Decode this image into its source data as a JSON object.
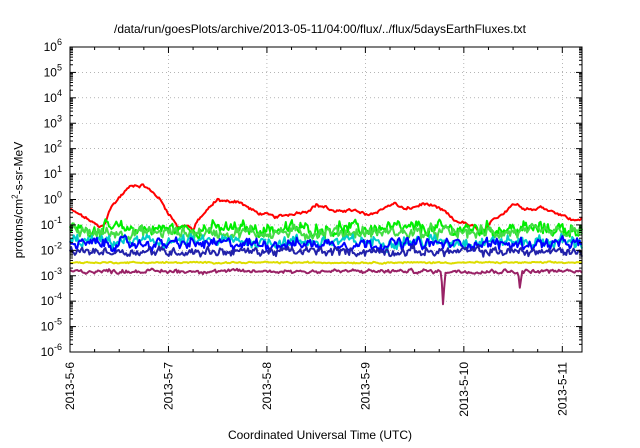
{
  "chart_data": {
    "type": "line",
    "title": "/data/run/goesPlots/archive/2013-05-11/04:00/flux/../flux/5daysEarthFluxes.txt",
    "xlabel": "Coordinated Universal Time (UTC)",
    "ylabel": {
      "prefix": "protons/cm",
      "sup": "2",
      "suffix": "-s-sr-MeV"
    },
    "yscale": "log",
    "ylim_exp": [
      -6,
      6
    ],
    "y_tick_labels": [
      "10^-6",
      "10^-5",
      "10^-4",
      "10^-3",
      "10^-2",
      "10^-1",
      "10^0",
      "10^1",
      "10^2",
      "10^3",
      "10^4",
      "10^5",
      "10^6"
    ],
    "x_tick_labels": [
      "2013-5-6",
      "2013-5-7",
      "2013-5-8",
      "2013-5-9",
      "2013-5-10",
      "2013-5-11"
    ],
    "xlim_days": [
      0,
      5.2
    ],
    "grid": true,
    "grid_style": "dotted",
    "x_note": "x is days since 2013-5-6 00:00 UTC",
    "series": [
      {
        "name": "red channel",
        "color": "#ff0000",
        "points": [
          [
            0.0,
            0.4
          ],
          [
            0.1,
            0.25
          ],
          [
            0.2,
            0.15
          ],
          [
            0.3,
            0.08
          ],
          [
            0.35,
            0.1
          ],
          [
            0.4,
            0.4
          ],
          [
            0.5,
            1.2
          ],
          [
            0.6,
            3.0
          ],
          [
            0.65,
            3.8
          ],
          [
            0.7,
            3.5
          ],
          [
            0.75,
            3.6
          ],
          [
            0.8,
            2.5
          ],
          [
            0.9,
            1.2
          ],
          [
            1.0,
            0.3
          ],
          [
            1.1,
            0.08
          ],
          [
            1.2,
            0.1
          ],
          [
            1.25,
            0.06
          ],
          [
            1.3,
            0.15
          ],
          [
            1.4,
            0.4
          ],
          [
            1.5,
            1.0
          ],
          [
            1.6,
            0.8
          ],
          [
            1.7,
            0.9
          ],
          [
            1.8,
            0.5
          ],
          [
            1.9,
            0.3
          ],
          [
            2.0,
            0.25
          ],
          [
            2.1,
            0.2
          ],
          [
            2.2,
            0.25
          ],
          [
            2.3,
            0.3
          ],
          [
            2.4,
            0.35
          ],
          [
            2.5,
            0.6
          ],
          [
            2.6,
            0.5
          ],
          [
            2.7,
            0.3
          ],
          [
            2.8,
            0.4
          ],
          [
            2.9,
            0.35
          ],
          [
            3.0,
            0.25
          ],
          [
            3.1,
            0.3
          ],
          [
            3.2,
            0.5
          ],
          [
            3.3,
            0.7
          ],
          [
            3.4,
            0.4
          ],
          [
            3.5,
            0.5
          ],
          [
            3.6,
            0.7
          ],
          [
            3.7,
            0.5
          ],
          [
            3.8,
            0.35
          ],
          [
            3.9,
            0.15
          ],
          [
            4.0,
            0.12
          ],
          [
            4.1,
            0.08
          ],
          [
            4.2,
            0.05
          ],
          [
            4.3,
            0.15
          ],
          [
            4.4,
            0.3
          ],
          [
            4.5,
            0.7
          ],
          [
            4.6,
            0.5
          ],
          [
            4.7,
            0.4
          ],
          [
            4.8,
            0.5
          ],
          [
            4.9,
            0.35
          ],
          [
            5.0,
            0.25
          ],
          [
            5.1,
            0.15
          ],
          [
            5.2,
            0.18
          ]
        ],
        "noise": 0.08
      },
      {
        "name": "green channel",
        "color": "#00ee00",
        "base": 0.07,
        "noise": 0.35
      },
      {
        "name": "light green channel",
        "color": "#44dd44",
        "base": 0.05,
        "noise": 0.3
      },
      {
        "name": "cyan channel",
        "color": "#00cccc",
        "base": 0.022,
        "noise": 0.3
      },
      {
        "name": "blue channel",
        "color": "#0000ff",
        "base": 0.018,
        "noise": 0.28
      },
      {
        "name": "dark blue channel",
        "color": "#2222aa",
        "base": 0.009,
        "noise": 0.22
      },
      {
        "name": "yellow channel",
        "color": "#dddd00",
        "base": 0.0033,
        "noise": 0.04
      },
      {
        "name": "purple channel",
        "color": "#992266",
        "base": 0.0015,
        "noise": 0.1,
        "dips": [
          [
            3.79,
            6e-05
          ],
          [
            4.57,
            0.0003
          ]
        ]
      }
    ]
  }
}
